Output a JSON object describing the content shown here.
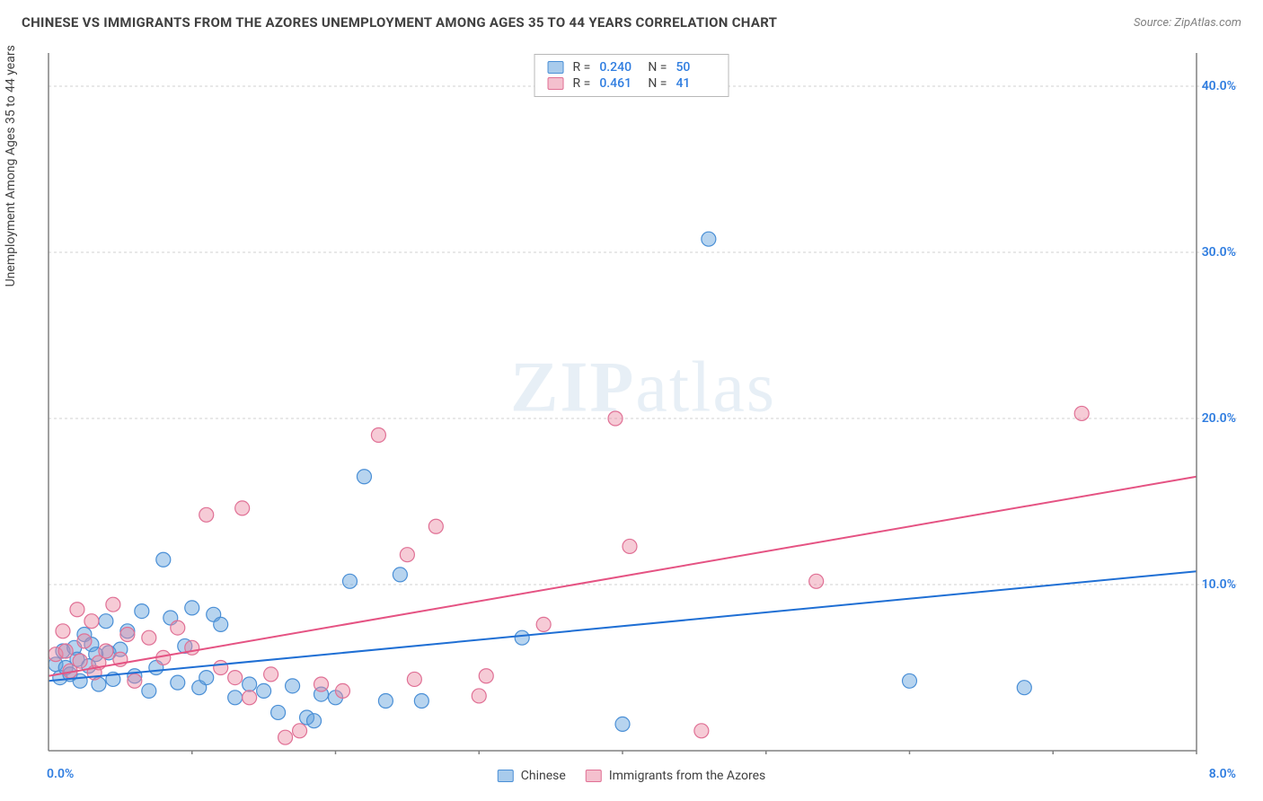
{
  "header": {
    "title": "CHINESE VS IMMIGRANTS FROM THE AZORES UNEMPLOYMENT AMONG AGES 35 TO 44 YEARS CORRELATION CHART",
    "source": "Source: ZipAtlas.com"
  },
  "ylabel": "Unemployment Among Ages 35 to 44 years",
  "watermark": {
    "zip": "ZIP",
    "atlas": "atlas"
  },
  "chart": {
    "type": "scatter",
    "xlim": [
      0,
      8
    ],
    "ylim": [
      0,
      42
    ],
    "x_origin_label": "0.0%",
    "x_max_label": "8.0%",
    "y_tick_labels": [
      "10.0%",
      "20.0%",
      "30.0%",
      "40.0%"
    ],
    "y_tick_values": [
      10,
      20,
      30,
      40
    ],
    "x_tick_values": [
      1,
      2,
      3,
      4,
      5,
      6,
      7,
      8
    ],
    "background_color": "#ffffff",
    "grid_color": "#d0d0d0",
    "axis_color": "#808080",
    "marker_radius": 8,
    "series": [
      {
        "name": "Chinese",
        "color_fill": "rgba(96,160,220,0.45)",
        "color_stroke": "#4a8fd6",
        "trend_color": "#1f6fd4",
        "trend": {
          "x1": 0,
          "y1": 4.2,
          "x2": 8,
          "y2": 10.8
        },
        "points": [
          [
            0.05,
            5.2
          ],
          [
            0.08,
            4.4
          ],
          [
            0.1,
            6.0
          ],
          [
            0.12,
            5.0
          ],
          [
            0.15,
            4.6
          ],
          [
            0.18,
            6.2
          ],
          [
            0.2,
            5.5
          ],
          [
            0.22,
            4.2
          ],
          [
            0.25,
            7.0
          ],
          [
            0.28,
            5.1
          ],
          [
            0.3,
            6.4
          ],
          [
            0.33,
            5.8
          ],
          [
            0.35,
            4.0
          ],
          [
            0.4,
            7.8
          ],
          [
            0.42,
            5.9
          ],
          [
            0.45,
            4.3
          ],
          [
            0.5,
            6.1
          ],
          [
            0.55,
            7.2
          ],
          [
            0.6,
            4.5
          ],
          [
            0.65,
            8.4
          ],
          [
            0.7,
            3.6
          ],
          [
            0.75,
            5.0
          ],
          [
            0.8,
            11.5
          ],
          [
            0.85,
            8.0
          ],
          [
            0.9,
            4.1
          ],
          [
            0.95,
            6.3
          ],
          [
            1.0,
            8.6
          ],
          [
            1.05,
            3.8
          ],
          [
            1.1,
            4.4
          ],
          [
            1.15,
            8.2
          ],
          [
            1.2,
            7.6
          ],
          [
            1.3,
            3.2
          ],
          [
            1.4,
            4.0
          ],
          [
            1.5,
            3.6
          ],
          [
            1.6,
            2.3
          ],
          [
            1.7,
            3.9
          ],
          [
            1.8,
            2.0
          ],
          [
            1.85,
            1.8
          ],
          [
            1.9,
            3.4
          ],
          [
            2.0,
            3.2
          ],
          [
            2.1,
            10.2
          ],
          [
            2.2,
            16.5
          ],
          [
            2.35,
            3.0
          ],
          [
            2.45,
            10.6
          ],
          [
            2.6,
            3.0
          ],
          [
            3.3,
            6.8
          ],
          [
            4.0,
            1.6
          ],
          [
            4.6,
            30.8
          ],
          [
            6.0,
            4.2
          ],
          [
            6.8,
            3.8
          ]
        ]
      },
      {
        "name": "Immigrants from the Azores",
        "color_fill": "rgba(235,140,165,0.45)",
        "color_stroke": "#e07095",
        "trend_color": "#e55383",
        "trend": {
          "x1": 0,
          "y1": 4.5,
          "x2": 8,
          "y2": 16.5
        },
        "points": [
          [
            0.05,
            5.8
          ],
          [
            0.1,
            7.2
          ],
          [
            0.12,
            6.0
          ],
          [
            0.15,
            4.8
          ],
          [
            0.2,
            8.5
          ],
          [
            0.22,
            5.4
          ],
          [
            0.25,
            6.6
          ],
          [
            0.3,
            7.8
          ],
          [
            0.32,
            4.7
          ],
          [
            0.35,
            5.3
          ],
          [
            0.4,
            6.0
          ],
          [
            0.45,
            8.8
          ],
          [
            0.5,
            5.5
          ],
          [
            0.55,
            7.0
          ],
          [
            0.6,
            4.2
          ],
          [
            0.7,
            6.8
          ],
          [
            0.8,
            5.6
          ],
          [
            0.9,
            7.4
          ],
          [
            1.0,
            6.2
          ],
          [
            1.1,
            14.2
          ],
          [
            1.2,
            5.0
          ],
          [
            1.3,
            4.4
          ],
          [
            1.35,
            14.6
          ],
          [
            1.4,
            3.2
          ],
          [
            1.55,
            4.6
          ],
          [
            1.65,
            0.8
          ],
          [
            1.75,
            1.2
          ],
          [
            1.9,
            4.0
          ],
          [
            2.05,
            3.6
          ],
          [
            2.3,
            19.0
          ],
          [
            2.5,
            11.8
          ],
          [
            2.55,
            4.3
          ],
          [
            2.7,
            13.5
          ],
          [
            3.0,
            3.3
          ],
          [
            3.05,
            4.5
          ],
          [
            3.45,
            7.6
          ],
          [
            3.95,
            20.0
          ],
          [
            4.05,
            12.3
          ],
          [
            4.55,
            1.2
          ],
          [
            5.35,
            10.2
          ],
          [
            7.2,
            20.3
          ]
        ]
      }
    ]
  },
  "stats": {
    "rows": [
      {
        "swatch": "blue",
        "R_label": "R =",
        "R": "0.240",
        "N_label": "N =",
        "N": "50"
      },
      {
        "swatch": "pink",
        "R_label": "R =",
        "R": "0.461",
        "N_label": "N =",
        "N": "41"
      }
    ]
  },
  "legend": {
    "items": [
      {
        "swatch": "blue",
        "label": "Chinese"
      },
      {
        "swatch": "pink",
        "label": "Immigrants from the Azores"
      }
    ]
  }
}
